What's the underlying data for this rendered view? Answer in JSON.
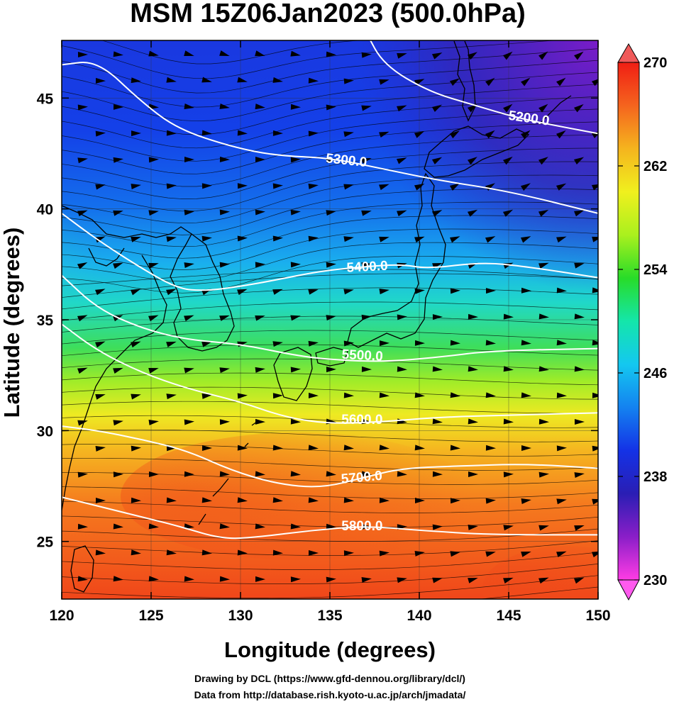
{
  "title": "MSM 15Z06Jan2023 (500.0hPa)",
  "credits": [
    "Drawing by DCL (https://www.gfd-dennou.org/library/dcl/)",
    "Data from http://database.rish.kyoto-u.ac.jp/arch/jmadata/"
  ],
  "map": {
    "xlabel": "Longitude (degrees)",
    "ylabel": "Latitude  (degrees)",
    "lon_range": [
      120,
      150
    ],
    "lat_range": [
      22.4,
      47.6
    ],
    "lon_ticks": [
      "120",
      "125",
      "130",
      "135",
      "140",
      "145",
      "150"
    ],
    "lon_tick_values": [
      120,
      125,
      130,
      135,
      140,
      145,
      150
    ],
    "lat_ticks": [
      "25",
      "30",
      "35",
      "40",
      "45"
    ],
    "lat_tick_values": [
      25,
      30,
      35,
      40,
      45
    ],
    "grid": true,
    "colorbar": {
      "range": [
        230,
        270
      ],
      "ticks": [
        "230",
        "238",
        "246",
        "254",
        "262",
        "270"
      ],
      "tick_values": [
        230,
        238,
        246,
        254,
        262,
        270
      ],
      "colors": [
        "#ff3ce4",
        "#8a1ec8",
        "#2a1eb4",
        "#1432e6",
        "#1482f0",
        "#14c8f0",
        "#14e6aa",
        "#28dc28",
        "#aaf01e",
        "#f0f01e",
        "#f5b41e",
        "#f5641e",
        "#f01e14"
      ]
    },
    "contours": [
      {
        "label": "5200.0",
        "value": 5200,
        "points": [
          [
            137.0,
            48.0
          ],
          [
            138.0,
            46.5
          ],
          [
            140.5,
            45.3
          ],
          [
            143.0,
            44.7
          ],
          [
            145.5,
            44.1
          ],
          [
            148.0,
            43.7
          ],
          [
            150.0,
            43.4
          ]
        ]
      },
      {
        "label": "5300.0",
        "value": 5300,
        "points": [
          [
            120.0,
            46.5
          ],
          [
            122.0,
            46.7
          ],
          [
            124.5,
            44.8
          ],
          [
            126.5,
            43.6
          ],
          [
            129.5,
            42.8
          ],
          [
            132.0,
            42.4
          ],
          [
            135.0,
            42.3
          ],
          [
            138.0,
            41.8
          ],
          [
            141.0,
            41.3
          ],
          [
            145.0,
            40.8
          ],
          [
            150.0,
            39.8
          ]
        ]
      },
      {
        "label": "5400.0",
        "value": 5400,
        "points": [
          [
            120.0,
            39.8
          ],
          [
            122.0,
            38.6
          ],
          [
            124.5,
            37.3
          ],
          [
            126.5,
            36.4
          ],
          [
            128.0,
            36.3
          ],
          [
            130.0,
            36.5
          ],
          [
            132.0,
            36.8
          ],
          [
            134.5,
            37.2
          ],
          [
            137.0,
            37.4
          ],
          [
            139.0,
            37.5
          ],
          [
            140.5,
            37.3
          ],
          [
            143.5,
            37.6
          ],
          [
            146.0,
            37.4
          ],
          [
            150.0,
            36.9
          ]
        ]
      },
      {
        "label": "5500.0",
        "value": 5500,
        "points": [
          [
            120.0,
            37.0
          ],
          [
            122.0,
            35.5
          ],
          [
            124.5,
            34.6
          ],
          [
            127.0,
            34.1
          ],
          [
            130.0,
            33.9
          ],
          [
            133.0,
            33.4
          ],
          [
            135.0,
            33.2
          ],
          [
            138.0,
            33.1
          ],
          [
            141.0,
            33.3
          ],
          [
            144.0,
            33.6
          ],
          [
            150.0,
            33.7
          ]
        ]
      },
      {
        "label": "5600.0",
        "value": 5600,
        "points": [
          [
            120.0,
            34.8
          ],
          [
            122.0,
            33.6
          ],
          [
            124.5,
            32.6
          ],
          [
            127.0,
            31.9
          ],
          [
            130.0,
            31.3
          ],
          [
            132.5,
            30.6
          ],
          [
            135.0,
            30.3
          ],
          [
            138.0,
            30.4
          ],
          [
            141.0,
            30.6
          ],
          [
            145.0,
            30.7
          ],
          [
            150.0,
            30.8
          ]
        ]
      },
      {
        "label": "5700.0",
        "value": 5700,
        "points": [
          [
            120.0,
            30.2
          ],
          [
            122.0,
            30.0
          ],
          [
            124.5,
            29.6
          ],
          [
            127.0,
            29.1
          ],
          [
            129.5,
            28.2
          ],
          [
            132.0,
            27.6
          ],
          [
            134.5,
            27.4
          ],
          [
            137.0,
            27.9
          ],
          [
            139.0,
            28.3
          ],
          [
            142.0,
            28.4
          ],
          [
            146.0,
            28.5
          ],
          [
            150.0,
            28.3
          ]
        ]
      },
      {
        "label": "5800.0",
        "value": 5800,
        "points": [
          [
            120.0,
            27.0
          ],
          [
            122.0,
            26.6
          ],
          [
            124.5,
            26.1
          ],
          [
            126.5,
            25.7
          ],
          [
            129.0,
            25.1
          ],
          [
            131.0,
            25.2
          ],
          [
            134.0,
            25.5
          ],
          [
            137.0,
            25.7
          ],
          [
            140.0,
            25.5
          ],
          [
            144.0,
            25.3
          ],
          [
            150.0,
            25.3
          ]
        ]
      }
    ],
    "contour_labels": [
      {
        "text": "5200.0",
        "lon": 146.1,
        "lat": 43.9,
        "angle": 8
      },
      {
        "text": "5300.0",
        "lon": 135.9,
        "lat": 42.0,
        "angle": 6
      },
      {
        "text": "5400.0",
        "lon": 137.1,
        "lat": 37.2,
        "angle": -3
      },
      {
        "text": "5500.0",
        "lon": 136.8,
        "lat": 33.2,
        "angle": 3
      },
      {
        "text": "5600.0",
        "lon": 136.8,
        "lat": 30.3,
        "angle": 0
      },
      {
        "text": "5700.0",
        "lon": 136.8,
        "lat": 27.7,
        "angle": -5
      },
      {
        "text": "5800.0",
        "lon": 136.8,
        "lat": 25.5,
        "angle": 0
      }
    ]
  }
}
